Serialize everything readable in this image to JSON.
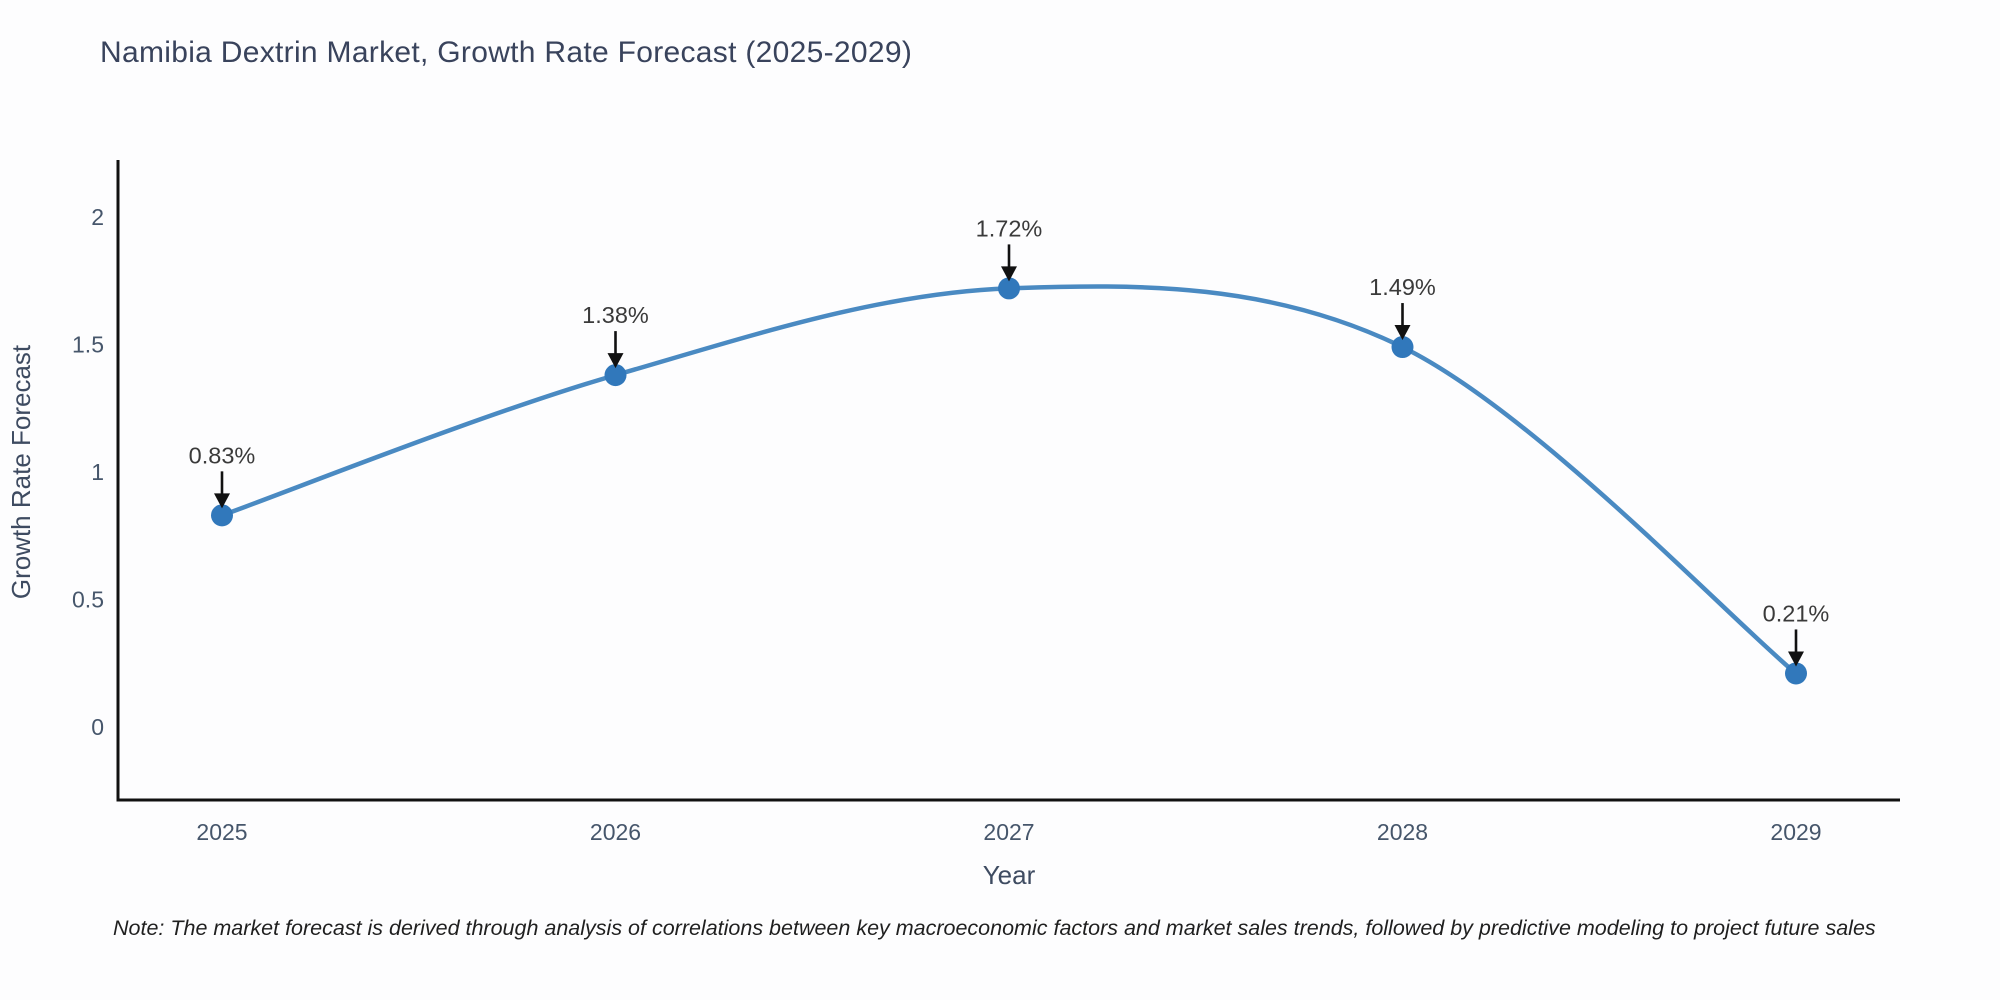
{
  "title": "Namibia Dextrin Market, Growth Rate Forecast (2025-2029)",
  "note": "Note: The market forecast is derived through analysis of correlations between key macroeconomic factors and market sales trends, followed by predictive modeling to project future sales",
  "chart_data": {
    "type": "line",
    "title": "Namibia Dextrin Market, Growth Rate Forecast (2025-2029)",
    "x": [
      "2025",
      "2026",
      "2027",
      "2028",
      "2029"
    ],
    "series": [
      {
        "name": "Growth Rate Forecast",
        "values": [
          0.83,
          1.38,
          1.72,
          1.49,
          0.21
        ]
      }
    ],
    "point_labels": [
      "0.83%",
      "1.38%",
      "1.72%",
      "1.49%",
      "0.21%"
    ],
    "xlabel": "Year",
    "ylabel": "Growth Rate Forecast",
    "yticks": [
      "0",
      "0.5",
      "1",
      "1.5",
      "2"
    ],
    "ytick_values": [
      0,
      0.5,
      1,
      1.5,
      2
    ],
    "ylim": [
      -0.29,
      2.22
    ],
    "grid": "off",
    "legend": "none",
    "line_smooth": true,
    "colors": {
      "line": "#4a8ac2",
      "marker": "#3178bb",
      "spine": "#111111",
      "tick_label": "#46566b",
      "axis_label": "#3e4b61",
      "annotation_text": "#3a3a3a",
      "arrow": "#111111",
      "title": "#39435c",
      "background": "#fdfdfe"
    }
  }
}
